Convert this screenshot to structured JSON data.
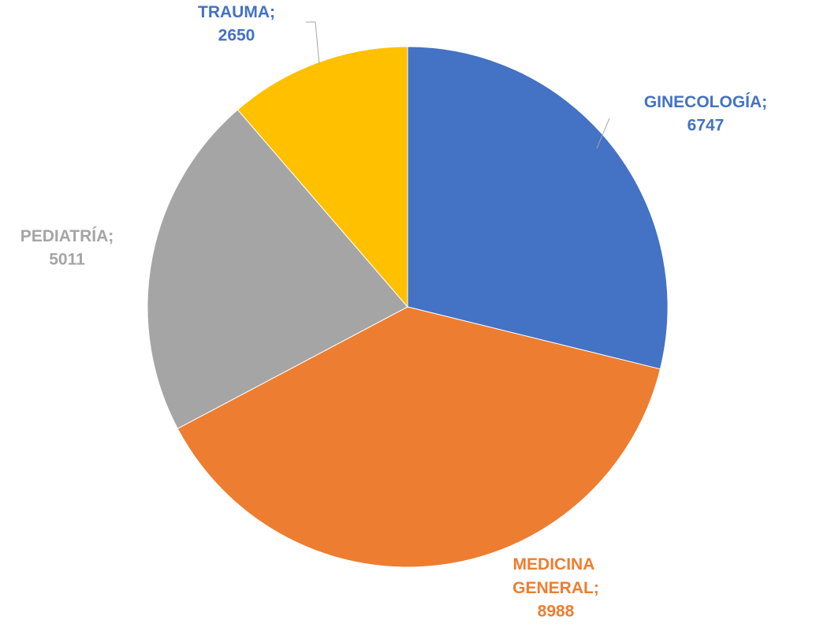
{
  "chart_data": {
    "type": "pie",
    "categories": [
      "GINECOLOGÍA;",
      "MEDICINA GENERAL;",
      "PEDIATRÍA;",
      "TRAUMA;"
    ],
    "values": [
      6747,
      8988,
      5011,
      2650
    ],
    "colors": [
      "#4472c4",
      "#ed7d31",
      "#a5a5a5",
      "#ffc000"
    ],
    "label_colors": [
      "#4472c4",
      "#ed7d31",
      "#a5a5a5",
      "#4472c4"
    ]
  }
}
